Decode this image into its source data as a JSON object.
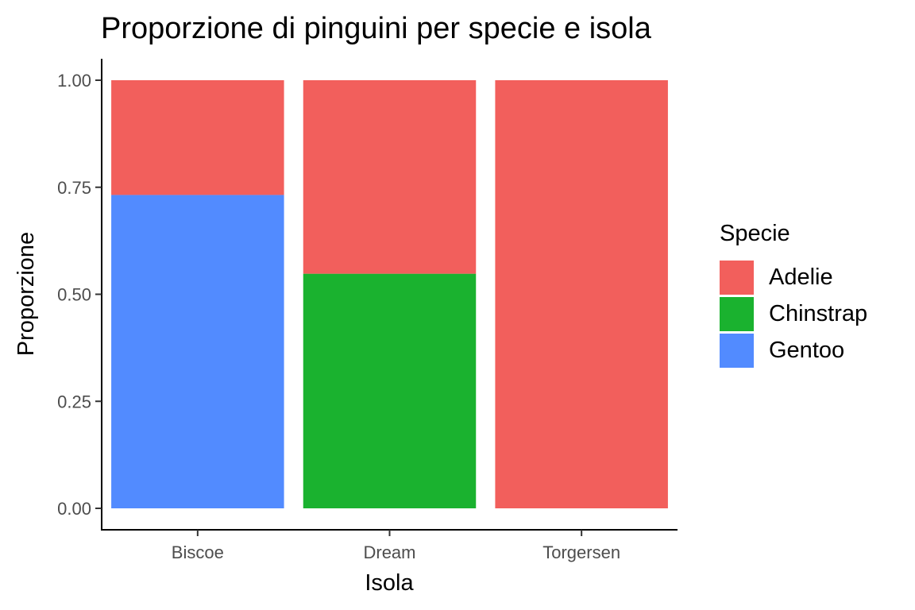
{
  "chart_data": {
    "type": "bar",
    "stacked": true,
    "title": "Proporzione di pinguini per specie e isola",
    "xlabel": "Isola",
    "ylabel": "Proporzione",
    "categories": [
      "Biscoe",
      "Dream",
      "Torgersen"
    ],
    "ylim": [
      0,
      1
    ],
    "yticks": [
      "0.00",
      "0.25",
      "0.50",
      "0.75",
      "1.00"
    ],
    "grid": false,
    "legend_position": "right",
    "legend_title": "Specie",
    "series": [
      {
        "name": "Gentoo",
        "color": "#528bff",
        "values": [
          0.732,
          0,
          0
        ]
      },
      {
        "name": "Chinstrap",
        "color": "#1ab22f",
        "values": [
          0,
          0.548,
          0
        ]
      },
      {
        "name": "Adelie",
        "color": "#f25f5c",
        "values": [
          0.268,
          0.452,
          1.0
        ]
      }
    ],
    "legend_order": [
      "Adelie",
      "Chinstrap",
      "Gentoo"
    ]
  }
}
